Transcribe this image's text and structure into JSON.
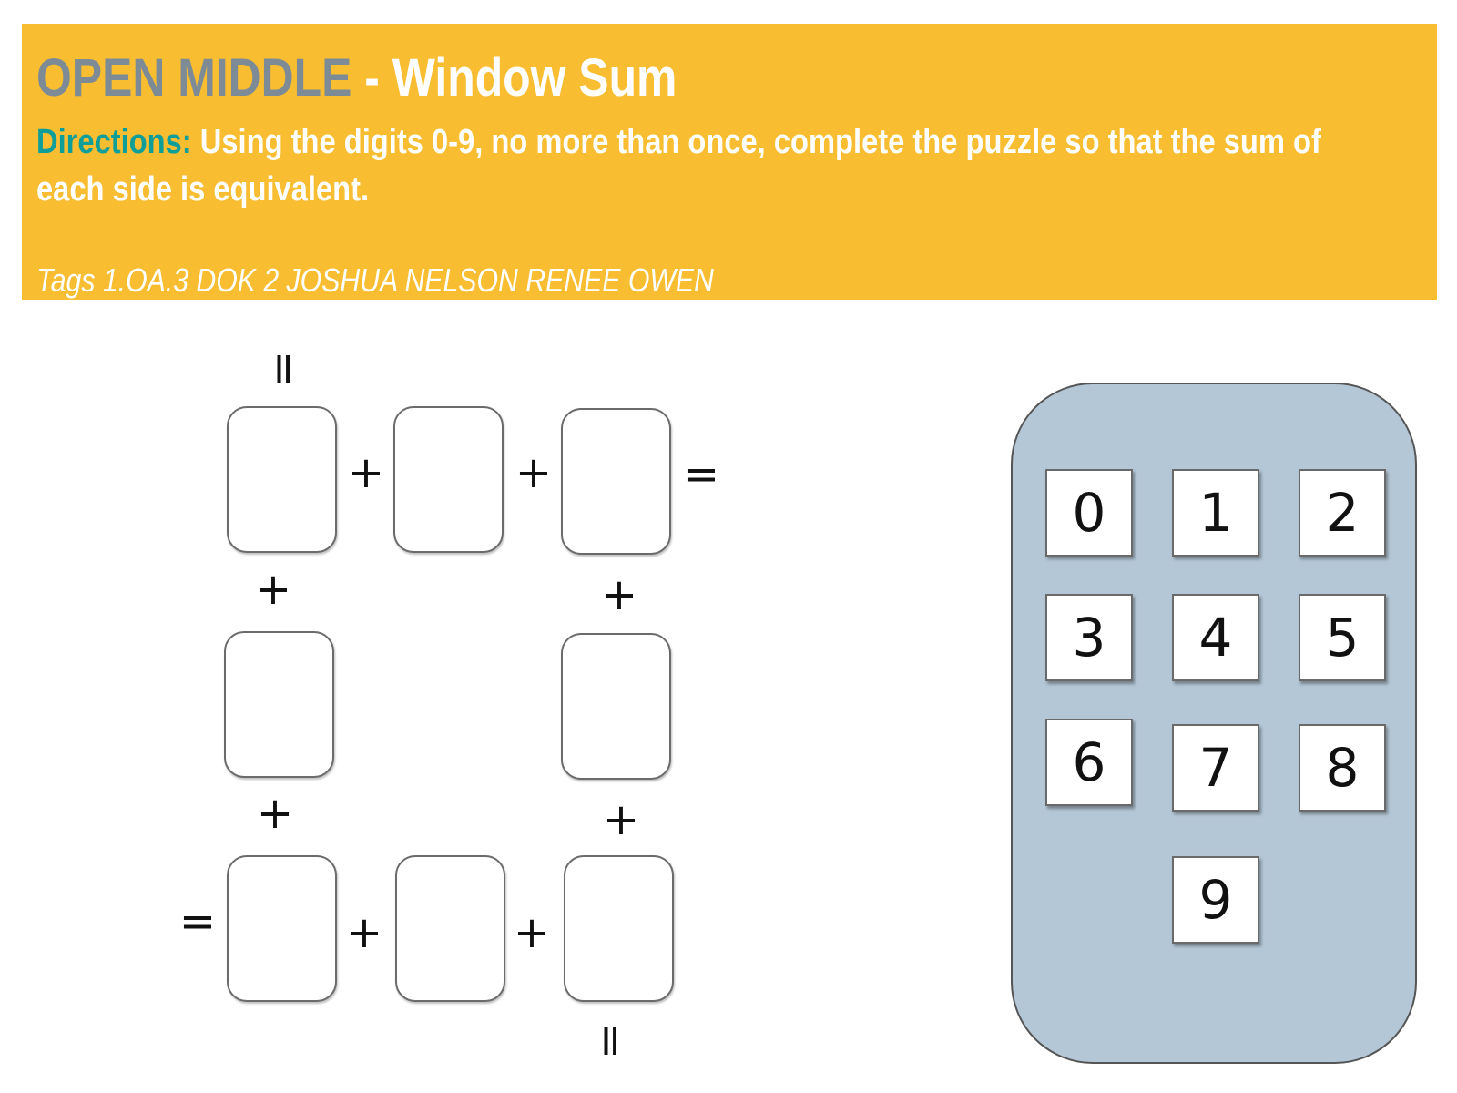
{
  "header": {
    "brand": "OPEN MIDDLE",
    "separator": " - ",
    "puzzle_name": "Window Sum",
    "directions_label": "Directions:",
    "directions_text": " Using the digits 0-9, no more than once, complete the puzzle so that the sum of each side is equivalent.",
    "tags": "Tags 1.OA.3 DOK 2 JOSHUA NELSON RENEE OWEN"
  },
  "puzzle": {
    "plus": "+",
    "equals": "="
  },
  "digit_bank": {
    "digits": [
      "0",
      "1",
      "2",
      "3",
      "4",
      "5",
      "6",
      "7",
      "8",
      "9"
    ]
  },
  "colors": {
    "banner": "#f8bd30",
    "brand": "#7d8b96",
    "directions_label": "#0e9e9a",
    "bank_background": "#b4c7d6"
  }
}
